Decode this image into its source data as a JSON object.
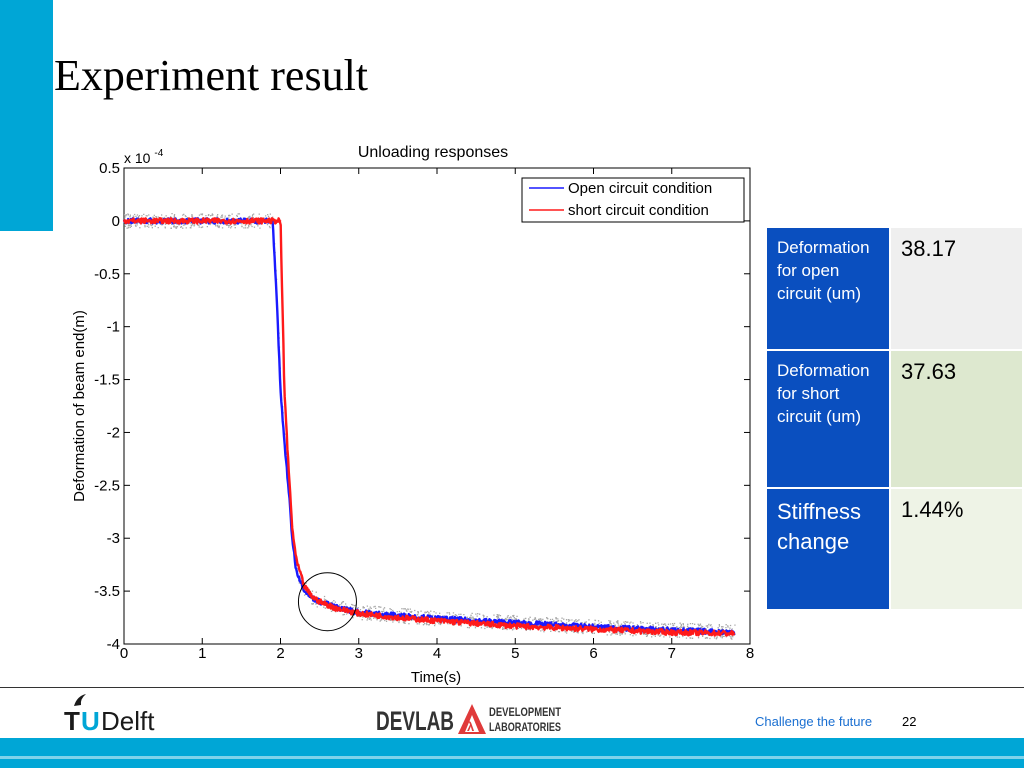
{
  "slide": {
    "title": "Experiment result",
    "footer_text": "Challenge the future",
    "page_number": "22"
  },
  "logos": {
    "tudelft": "TUDelft",
    "devlab": "DEVLAB",
    "devlab_sub1": "DEVELOPMENT",
    "devlab_sub2": "LABORATORIES"
  },
  "colors": {
    "accent": "#00a6d6",
    "table_label_bg": "#0a4fbf",
    "open_circuit": "#1a1aff",
    "short_circuit": "#ff1a1a",
    "noise": "#a8a8a8"
  },
  "table": {
    "rows": [
      {
        "label": "Deformation for open circuit (um)",
        "value": "38.17"
      },
      {
        "label": "Deformation for short circuit (um)",
        "value": "37.63"
      },
      {
        "label": "Stiffness change",
        "value": "1.44%"
      }
    ]
  },
  "chart_data": {
    "type": "line",
    "title": "Unloading responses",
    "xlabel": "Time(s)",
    "ylabel": "Deformation of beam end(m)",
    "y_multiplier": "x 10",
    "y_multiplier_exp": "-4",
    "xlim": [
      0,
      8
    ],
    "ylim": [
      -4,
      0.5
    ],
    "xticks": [
      "0",
      "1",
      "2",
      "3",
      "4",
      "5",
      "6",
      "7",
      "8"
    ],
    "yticks": [
      "0.5",
      "0",
      "-0.5",
      "-1",
      "-1.5",
      "-2",
      "-2.5",
      "-3",
      "-3.5",
      "-4"
    ],
    "ytick_values": [
      0.5,
      0,
      -0.5,
      -1,
      -1.5,
      -2,
      -2.5,
      -3,
      -3.5,
      -4
    ],
    "grid": false,
    "legend_position": "top-right",
    "series": [
      {
        "name": "Open circuit condition",
        "color": "#1a1aff",
        "x": [
          0,
          0.5,
          1,
          1.5,
          1.9,
          1.95,
          2.0,
          2.05,
          2.1,
          2.15,
          2.2,
          2.3,
          2.4,
          2.5,
          2.7,
          3,
          3.5,
          4,
          5,
          6,
          7,
          7.8
        ],
        "y": [
          0,
          0,
          0,
          0,
          0,
          -0.7,
          -1.6,
          -2.1,
          -2.5,
          -3.0,
          -3.3,
          -3.48,
          -3.56,
          -3.6,
          -3.65,
          -3.7,
          -3.73,
          -3.76,
          -3.8,
          -3.84,
          -3.87,
          -3.89
        ]
      },
      {
        "name": "short circuit condition",
        "color": "#ff1a1a",
        "x": [
          0,
          0.5,
          1,
          1.5,
          2.0,
          2.05,
          2.1,
          2.15,
          2.2,
          2.3,
          2.4,
          2.5,
          2.7,
          3,
          3.5,
          4,
          5,
          6,
          7,
          7.8
        ],
        "y": [
          0,
          0,
          0,
          0,
          0,
          -1.6,
          -2.3,
          -2.9,
          -3.2,
          -3.45,
          -3.55,
          -3.6,
          -3.66,
          -3.71,
          -3.75,
          -3.78,
          -3.83,
          -3.86,
          -3.89,
          -3.9
        ]
      }
    ],
    "annotation": {
      "type": "circle",
      "cx": 2.6,
      "cy": -3.6
    }
  }
}
